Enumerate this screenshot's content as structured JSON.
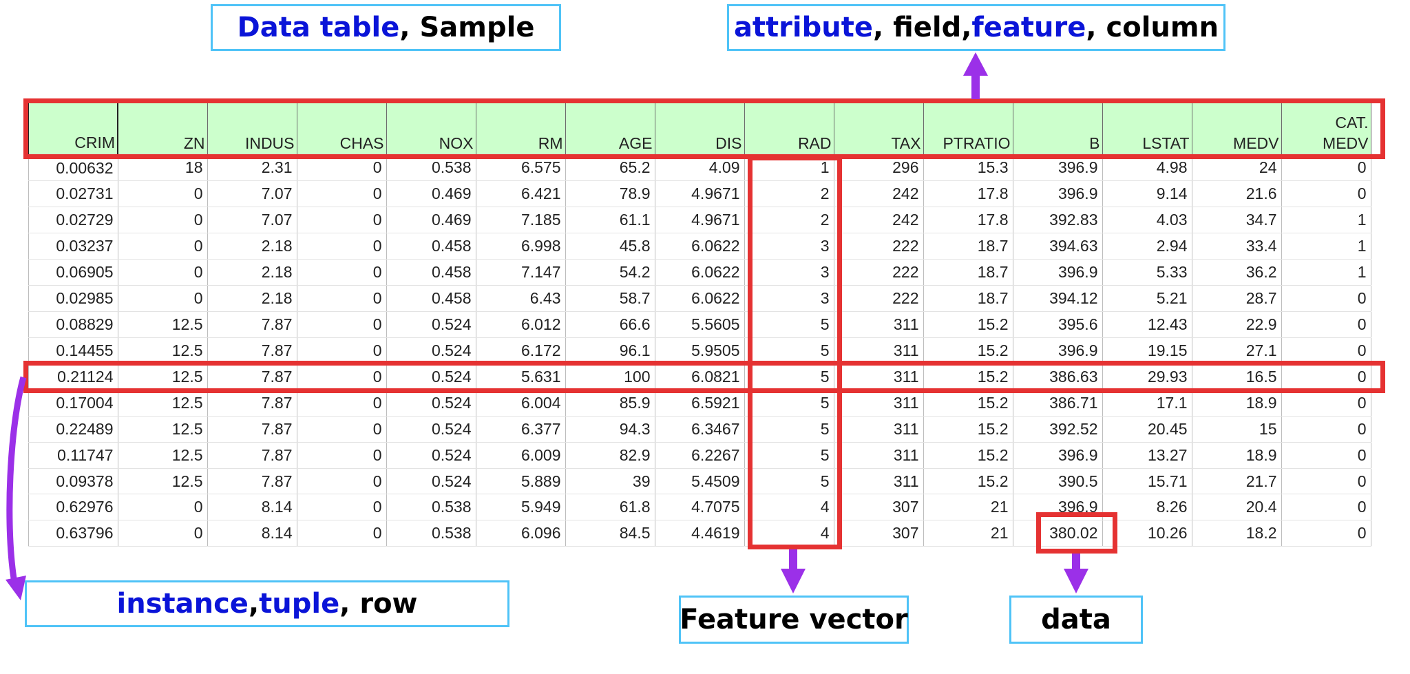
{
  "labels": {
    "data_table_kw": "Data table",
    "data_table_rest": ", Sample",
    "attr_kw1": "attribute",
    "attr_sep1": ", field, ",
    "attr_kw2": "feature",
    "attr_rest": ", column",
    "instance_kw1": "instance",
    "instance_sep": ", ",
    "instance_kw2": "tuple",
    "instance_rest": ", row",
    "feature_vector": "Feature vector",
    "data": "data"
  },
  "colors": {
    "keyword": "#0a14d8",
    "highlight_box": "#e53232",
    "label_border": "#4fc3f7",
    "arrow": "#9b30e8",
    "header_fill": "#ccffcc"
  },
  "table": {
    "headers": [
      "CRIM",
      "ZN",
      "INDUS",
      "CHAS",
      "NOX",
      "RM",
      "AGE",
      "DIS",
      "RAD",
      "TAX",
      "PTRATIO",
      "B",
      "LSTAT",
      "MEDV",
      "CAT.\nMEDV"
    ],
    "rows": [
      [
        "0.00632",
        "18",
        "2.31",
        "0",
        "0.538",
        "6.575",
        "65.2",
        "4.09",
        "1",
        "296",
        "15.3",
        "396.9",
        "4.98",
        "24",
        "0"
      ],
      [
        "0.02731",
        "0",
        "7.07",
        "0",
        "0.469",
        "6.421",
        "78.9",
        "4.9671",
        "2",
        "242",
        "17.8",
        "396.9",
        "9.14",
        "21.6",
        "0"
      ],
      [
        "0.02729",
        "0",
        "7.07",
        "0",
        "0.469",
        "7.185",
        "61.1",
        "4.9671",
        "2",
        "242",
        "17.8",
        "392.83",
        "4.03",
        "34.7",
        "1"
      ],
      [
        "0.03237",
        "0",
        "2.18",
        "0",
        "0.458",
        "6.998",
        "45.8",
        "6.0622",
        "3",
        "222",
        "18.7",
        "394.63",
        "2.94",
        "33.4",
        "1"
      ],
      [
        "0.06905",
        "0",
        "2.18",
        "0",
        "0.458",
        "7.147",
        "54.2",
        "6.0622",
        "3",
        "222",
        "18.7",
        "396.9",
        "5.33",
        "36.2",
        "1"
      ],
      [
        "0.02985",
        "0",
        "2.18",
        "0",
        "0.458",
        "6.43",
        "58.7",
        "6.0622",
        "3",
        "222",
        "18.7",
        "394.12",
        "5.21",
        "28.7",
        "0"
      ],
      [
        "0.08829",
        "12.5",
        "7.87",
        "0",
        "0.524",
        "6.012",
        "66.6",
        "5.5605",
        "5",
        "311",
        "15.2",
        "395.6",
        "12.43",
        "22.9",
        "0"
      ],
      [
        "0.14455",
        "12.5",
        "7.87",
        "0",
        "0.524",
        "6.172",
        "96.1",
        "5.9505",
        "5",
        "311",
        "15.2",
        "396.9",
        "19.15",
        "27.1",
        "0"
      ],
      [
        "0.21124",
        "12.5",
        "7.87",
        "0",
        "0.524",
        "5.631",
        "100",
        "6.0821",
        "5",
        "311",
        "15.2",
        "386.63",
        "29.93",
        "16.5",
        "0"
      ],
      [
        "0.17004",
        "12.5",
        "7.87",
        "0",
        "0.524",
        "6.004",
        "85.9",
        "6.5921",
        "5",
        "311",
        "15.2",
        "386.71",
        "17.1",
        "18.9",
        "0"
      ],
      [
        "0.22489",
        "12.5",
        "7.87",
        "0",
        "0.524",
        "6.377",
        "94.3",
        "6.3467",
        "5",
        "311",
        "15.2",
        "392.52",
        "20.45",
        "15",
        "0"
      ],
      [
        "0.11747",
        "12.5",
        "7.87",
        "0",
        "0.524",
        "6.009",
        "82.9",
        "6.2267",
        "5",
        "311",
        "15.2",
        "396.9",
        "13.27",
        "18.9",
        "0"
      ],
      [
        "0.09378",
        "12.5",
        "7.87",
        "0",
        "0.524",
        "5.889",
        "39",
        "5.4509",
        "5",
        "311",
        "15.2",
        "390.5",
        "15.71",
        "21.7",
        "0"
      ],
      [
        "0.62976",
        "0",
        "8.14",
        "0",
        "0.538",
        "5.949",
        "61.8",
        "4.7075",
        "4",
        "307",
        "21",
        "396.9",
        "8.26",
        "20.4",
        "0"
      ],
      [
        "0.63796",
        "0",
        "8.14",
        "0",
        "0.538",
        "6.096",
        "84.5",
        "4.4619",
        "4",
        "307",
        "21",
        "380.02",
        "10.26",
        "18.2",
        "0"
      ]
    ]
  }
}
